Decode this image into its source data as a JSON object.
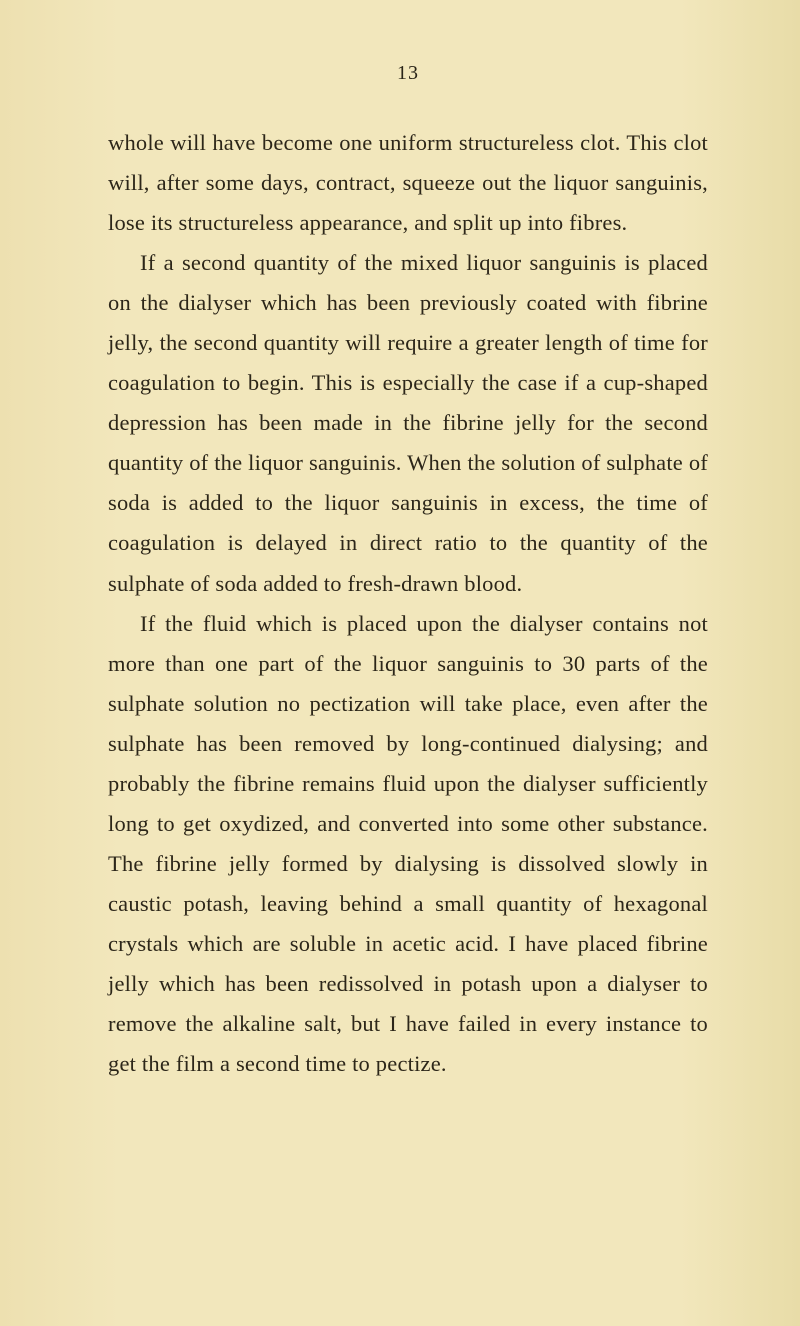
{
  "page_number": "13",
  "paragraphs": [
    {
      "indent": false,
      "text": "whole will have become one uniform structureless clot. This clot will, after some days, contract, squeeze out the liquor sanguinis, lose its structureless appearance, and split up into fibres."
    },
    {
      "indent": true,
      "text": "If a second quantity of the mixed liquor sanguinis is placed on the dialyser which has been previously coated with fibrine jelly, the second quantity will require a greater length of time for coagulation to begin. This is especially the case if a cup-shaped depression has been made in the fibrine jelly for the second quantity of the liquor sanguinis. When the solution of sulphate of soda is added to the liquor sanguinis in excess, the time of coagulation is delayed in direct ratio to the quantity of the sulphate of soda added to fresh-drawn blood."
    },
    {
      "indent": true,
      "text": "If the fluid which is placed upon the dialyser contains not more than one part of the liquor sanguinis to 30 parts of the sulphate solution no pectization will take place, even after the sulphate has been removed by long-continued dialysing; and probably the fibrine remains fluid upon the dialyser sufficiently long to get oxydized, and converted into some other substance. The fibrine jelly formed by dialysing is dissolved slowly in caustic potash, leaving behind a small quantity of hexagonal crystals which are soluble in acetic acid. I have placed fibrine jelly which has been redissolved in potash upon a dialyser to remove the alkaline salt, but I have failed in every instance to get the film a second time to pectize."
    }
  ],
  "colors": {
    "background": "#f0e4b8",
    "text": "#2c2619"
  },
  "typography": {
    "body_fontsize": 22.5,
    "line_height": 1.78,
    "font_family": "Georgia, serif"
  }
}
